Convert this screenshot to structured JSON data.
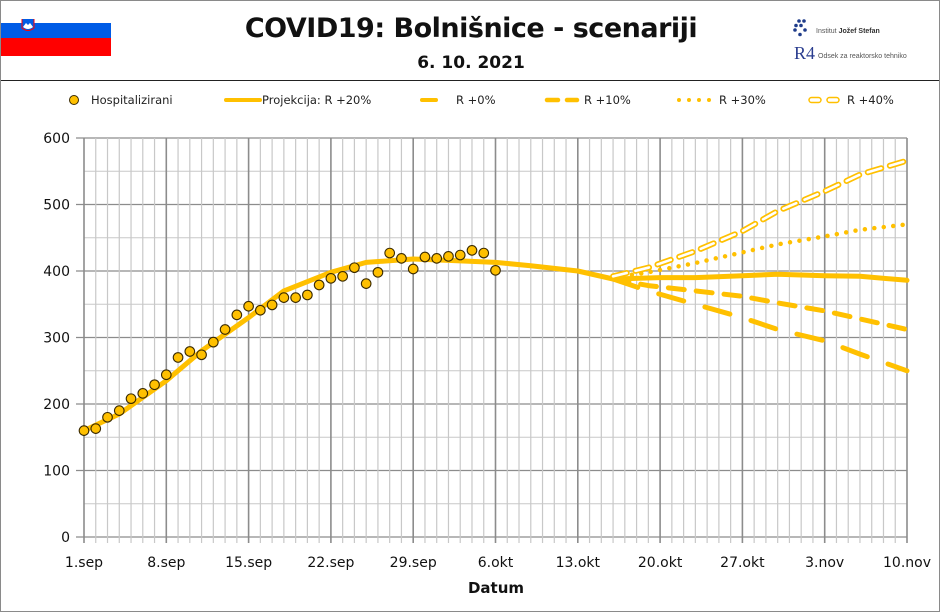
{
  "header": {
    "title": "COVID19: Bolnišnice - scenariji",
    "date": "6. 10. 2021",
    "logo_ijs_prefix": "Institut ",
    "logo_ijs_name": "Jožef Stefan",
    "logo_r4_mark": "R4",
    "logo_r4_text": "Odsek za reaktorsko tehniko"
  },
  "colors": {
    "series": "#FFC000",
    "marker_edge": "#3a2a00",
    "flag_white": "#ffffff",
    "flag_blue": "#005ce6",
    "flag_red": "#ff0000",
    "grid_major": "#8c8c8c",
    "grid_minor": "#c8c8c8"
  },
  "legend": [
    {
      "label": "Hospitalizirani",
      "style": "marker"
    },
    {
      "label": "Projekcija: R +20%",
      "style": "solid"
    },
    {
      "label": "R +0%",
      "style": "dash"
    },
    {
      "label": "R +10%",
      "style": "longdash"
    },
    {
      "label": "R +30%",
      "style": "dot"
    },
    {
      "label": "R +40%",
      "style": "hollow-dash"
    }
  ],
  "chart_data": {
    "type": "line",
    "title": "COVID19: Bolnišnice - scenariji",
    "subtitle": "6. 10. 2021",
    "xlabel": "Datum",
    "ylabel": "",
    "ylim": [
      0,
      600
    ],
    "yticks": [
      0,
      100,
      200,
      300,
      400,
      500,
      600
    ],
    "xticks": [
      "1.sep",
      "8.sep",
      "15.sep",
      "22.sep",
      "29.sep",
      "6.okt",
      "13.okt",
      "20.okt",
      "27.okt",
      "3.nov",
      "10.nov"
    ],
    "x_day_range": [
      0,
      70
    ],
    "grid": true,
    "legend_position": "top",
    "series": [
      {
        "name": "Hospitalizirani",
        "kind": "scatter",
        "x": [
          0,
          1,
          2,
          3,
          4,
          5,
          6,
          7,
          8,
          9,
          10,
          11,
          12,
          13,
          14,
          15,
          16,
          17,
          18,
          19,
          20,
          21,
          22,
          23,
          24,
          25,
          26,
          27,
          28,
          29,
          30,
          31,
          32,
          33,
          34,
          35
        ],
        "values": [
          160,
          163,
          180,
          190,
          208,
          216,
          229,
          244,
          270,
          279,
          274,
          293,
          312,
          334,
          347,
          341,
          349,
          360,
          360,
          364,
          379,
          389,
          392,
          405,
          381,
          398,
          427,
          419,
          403,
          421,
          419,
          422,
          424,
          431,
          427,
          401
        ]
      },
      {
        "name": "Projekcija: R +20%",
        "kind": "solid",
        "x": [
          0,
          3,
          7,
          10,
          14,
          17,
          21,
          24,
          28,
          31,
          35,
          38,
          42,
          45,
          49,
          52,
          56,
          59,
          63,
          66,
          70
        ],
        "values": [
          160,
          185,
          235,
          280,
          330,
          370,
          398,
          413,
          418,
          416,
          413,
          408,
          400,
          388,
          390,
          390,
          393,
          395,
          393,
          392,
          386
        ]
      },
      {
        "name": "R +0%",
        "kind": "dash",
        "x": [
          45,
          48,
          52,
          56,
          59,
          63,
          66,
          70
        ],
        "values": [
          388,
          370,
          350,
          330,
          312,
          295,
          275,
          250
        ]
      },
      {
        "name": "R +10%",
        "kind": "longdash",
        "x": [
          45,
          48,
          52,
          56,
          59,
          63,
          66,
          70
        ],
        "values": [
          388,
          378,
          370,
          362,
          352,
          340,
          328,
          312
        ]
      },
      {
        "name": "R +30%",
        "kind": "dot",
        "x": [
          45,
          48,
          52,
          56,
          59,
          63,
          66,
          70
        ],
        "values": [
          390,
          398,
          412,
          428,
          440,
          452,
          462,
          470
        ]
      },
      {
        "name": "R +40%",
        "kind": "hollow-dash",
        "x": [
          45,
          48,
          52,
          56,
          59,
          63,
          66,
          70
        ],
        "values": [
          392,
          405,
          430,
          460,
          490,
          520,
          545,
          566
        ]
      }
    ]
  }
}
